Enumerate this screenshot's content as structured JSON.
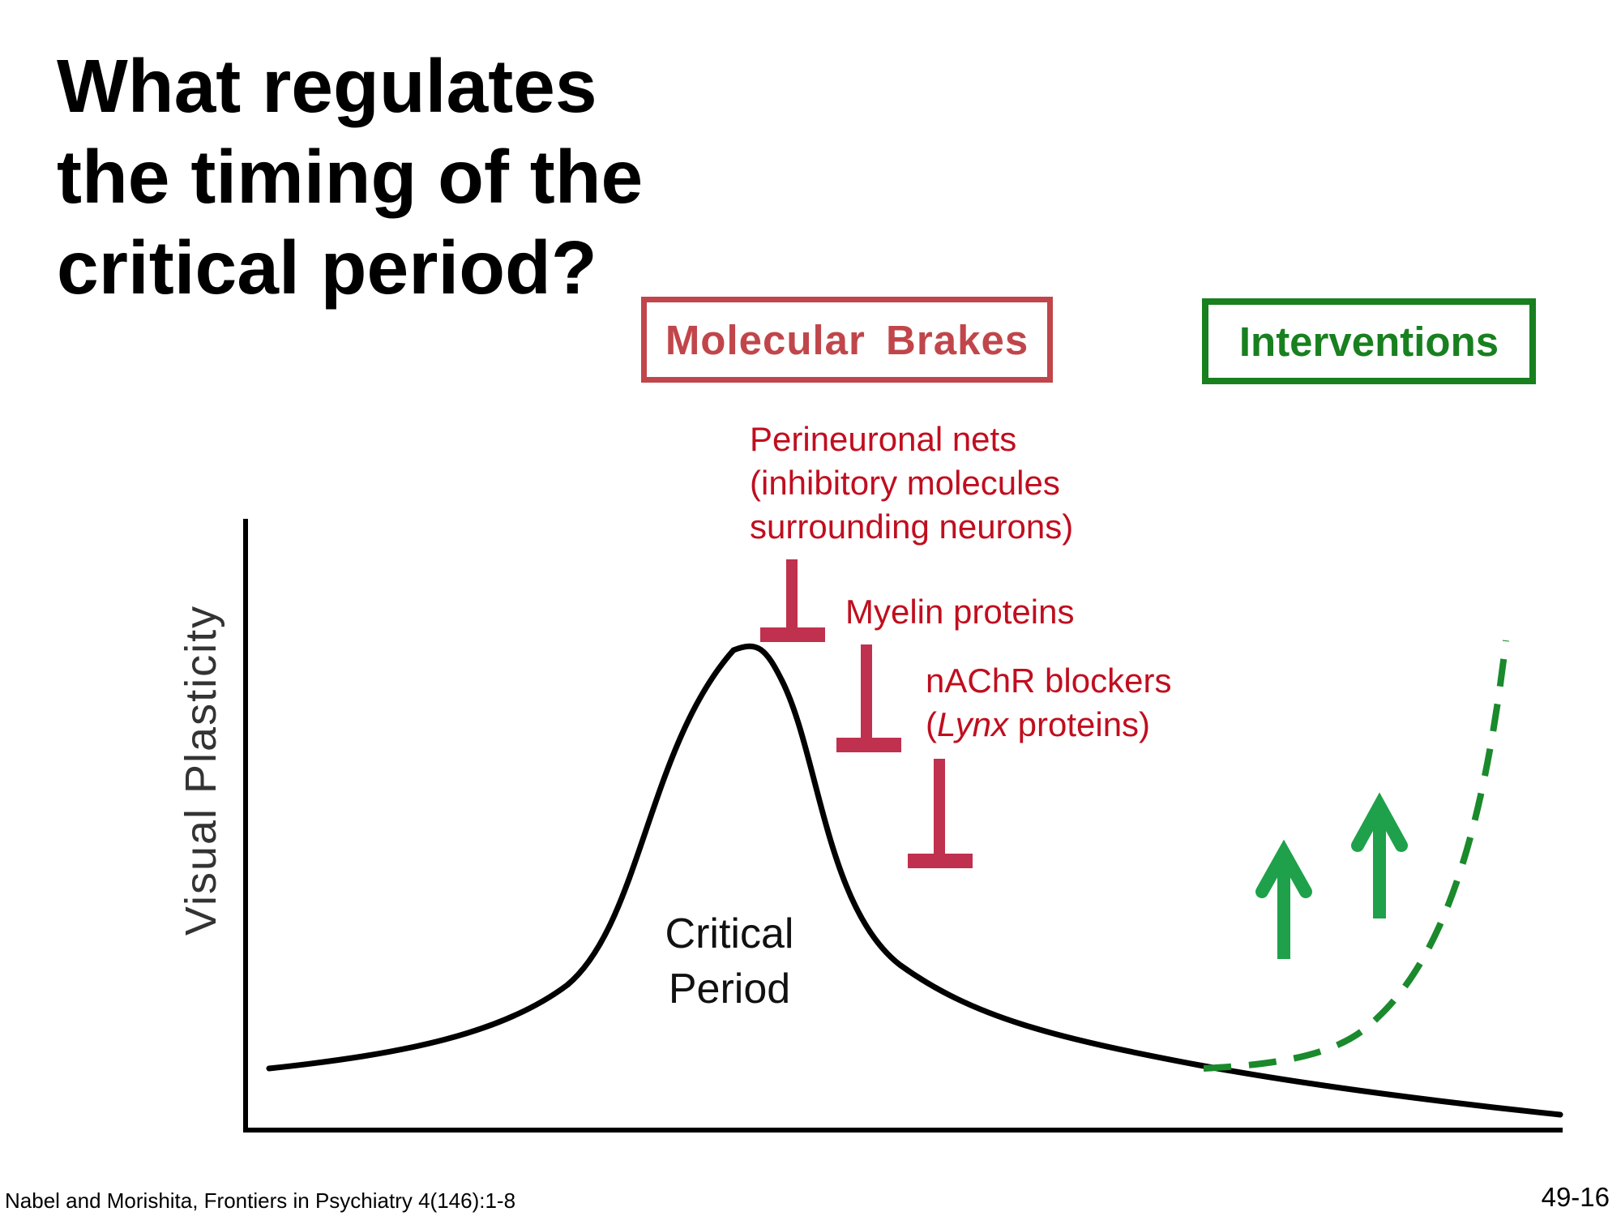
{
  "slide": {
    "title_lines": [
      "What regulates",
      "the timing of the",
      "critical period?"
    ],
    "molecular_brakes_label": "Molecular Brakes",
    "interventions_label": "Interventions",
    "brakes": {
      "perineuronal": [
        "Perineuronal nets",
        "(inhibitory molecules",
        "surrounding neurons)"
      ],
      "myelin": "Myelin proteins",
      "nachr_line1": "nAChR blockers",
      "nachr_open_paren": "(",
      "nachr_italic": "Lynx",
      "nachr_rest": " proteins)"
    },
    "y_axis_label": "Visual Plasticity",
    "critical_period_label": [
      "Critical",
      "Period"
    ],
    "citation": "Nabel and Morishita, Frontiers in Psychiatry 4(146):1-8",
    "slide_number": "49-16"
  },
  "colors": {
    "brakes_red": "#c0464b",
    "brake_symbol_red": "#c0304f",
    "text_red": "#c00e1f",
    "intervention_green": "#18801f",
    "arrow_green": "#1ea14a",
    "curve_black": "#000000"
  },
  "icons": {
    "brake_symbol": "inhibition-t-bar-icon",
    "intervention_arrow": "up-arrow-icon"
  }
}
